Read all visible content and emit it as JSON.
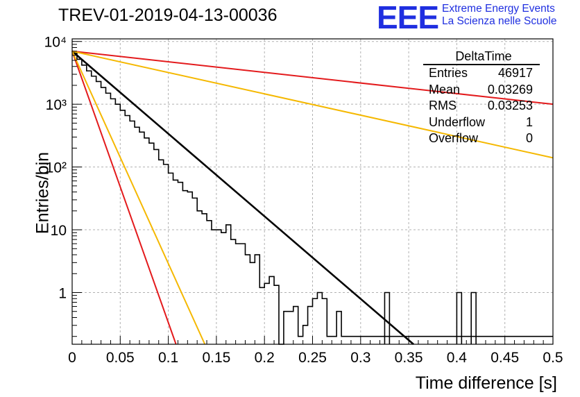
{
  "title": "TREV-01-2019-04-13-00036",
  "logo": {
    "mark": "EEE",
    "line1": "Extreme Energy Events",
    "line2": "La Scienza nelle Scuole"
  },
  "stats_box": {
    "name": "DeltaTime",
    "rows": [
      {
        "label": "Entries",
        "value": "46917"
      },
      {
        "label": "Mean",
        "value": "0.03269"
      },
      {
        "label": "RMS",
        "value": "0.03253"
      },
      {
        "label": "Underflow",
        "value": "1"
      },
      {
        "label": "Overflow",
        "value": "0"
      }
    ]
  },
  "chart_data": {
    "type": "histogram",
    "xlabel": "Time difference [s]",
    "ylabel": "Entries/bin",
    "xlim": [
      0,
      0.5
    ],
    "ylim": [
      0.15,
      11000
    ],
    "y_scale": "log",
    "grid": true,
    "x_ticks": [
      "0",
      "0.05",
      "0.1",
      "0.15",
      "0.2",
      "0.25",
      "0.3",
      "0.35",
      "0.4",
      "0.45",
      "0.5"
    ],
    "y_ticks": [
      {
        "value": 1,
        "label": "1"
      },
      {
        "value": 10,
        "label": "10"
      },
      {
        "value": 100,
        "label": "10²"
      },
      {
        "value": 1000,
        "label": "10³"
      },
      {
        "value": 10000,
        "label": "10⁴"
      }
    ],
    "bin_width": 0.005,
    "histogram_values": [
      6500,
      5200,
      4200,
      3400,
      2800,
      2300,
      1850,
      1500,
      1220,
      1000,
      800,
      660,
      540,
      430,
      360,
      290,
      240,
      190,
      130,
      110,
      80,
      62,
      57,
      42,
      40,
      32,
      20,
      18,
      14,
      10,
      10,
      9,
      12,
      7,
      6,
      6,
      4,
      3,
      4,
      1.2,
      1.4,
      1.8,
      1.3,
      0.1,
      0.5,
      0.5,
      0.6,
      0.2,
      0.3,
      0.6,
      0.8,
      1,
      0.8,
      0.2,
      0.2,
      0.5,
      0.2,
      0.2,
      0.2,
      0.2,
      0.2,
      0.2,
      0.2,
      0.2,
      0.2,
      0.2,
      0.2,
      0.2,
      0.2,
      0.2,
      0.2,
      0.2,
      0.2,
      0.2,
      0.2,
      0.2,
      0.2,
      0.2,
      0.2,
      0.2,
      0.2,
      0.2,
      0.2,
      0.2,
      0.2,
      0.2,
      0.2,
      0.2,
      0.2,
      0.2,
      0.2,
      0.2,
      0.2,
      0.2,
      0.2,
      0.2,
      0.2,
      0.2,
      0.2,
      0.2
    ],
    "histogram_spikes": [
      {
        "x": 0.325,
        "value": 1
      },
      {
        "x": 0.4,
        "value": 1
      },
      {
        "x": 0.415,
        "value": 1
      }
    ],
    "fit_lines": [
      {
        "color": "#000000",
        "x": [
          0,
          0.355
        ],
        "y": [
          7000,
          0.15
        ]
      },
      {
        "color": "#e31a1c",
        "x": [
          0,
          0.5
        ],
        "y": [
          7000,
          1000
        ]
      },
      {
        "color": "#f5b800",
        "x": [
          0,
          0.5
        ],
        "y": [
          7000,
          140
        ]
      },
      {
        "color": "#e31a1c",
        "x": [
          0,
          0.108
        ],
        "y": [
          7000,
          0.15
        ]
      },
      {
        "color": "#f5b800",
        "x": [
          0,
          0.138
        ],
        "y": [
          7000,
          0.15
        ]
      }
    ]
  }
}
